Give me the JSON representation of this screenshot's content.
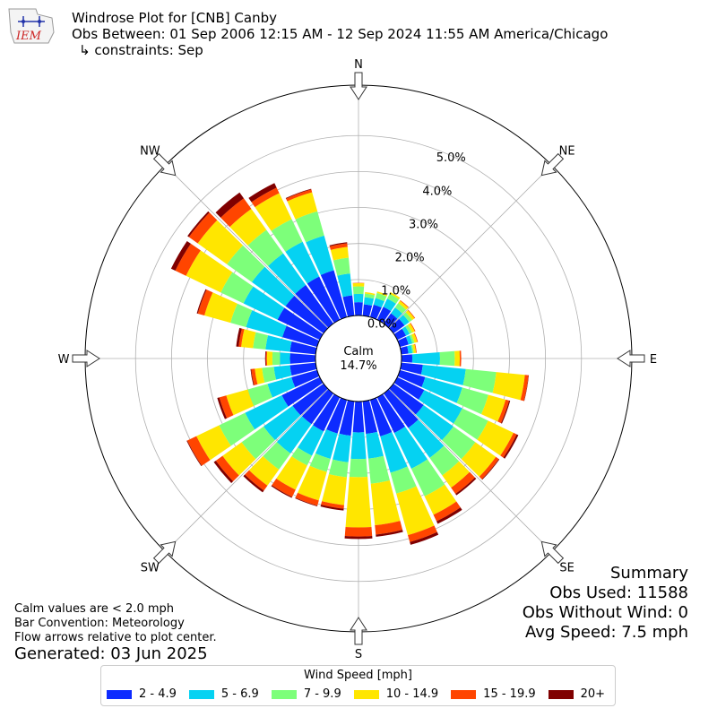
{
  "logo": {
    "text": "IEM",
    "color": "#cc2222"
  },
  "header": {
    "line1": "Windrose Plot for [CNB] Canby",
    "line2": "Obs Between: 01 Sep 2006 12:15 AM - 12 Sep 2024 11:55 AM America/Chicago",
    "line3": "↳ constraints: Sep"
  },
  "notes": {
    "calm": "Calm values are < 2.0 mph",
    "bar": "Bar Convention: Meteorology",
    "flow": "Flow arrows relative to plot center.",
    "generated": "Generated: 03 Jun 2025"
  },
  "summary": {
    "title": "Summary",
    "obs_used": "Obs Used: 11588",
    "obs_without_wind": "Obs Without Wind: 0",
    "avg_speed": "Avg Speed: 7.5 mph"
  },
  "legend": {
    "title": "Wind Speed [mph]"
  },
  "chart_data": {
    "type": "windrose",
    "calm_label": "Calm",
    "calm_value": "14.7%",
    "radial_ticks": [
      0,
      1,
      2,
      3,
      4,
      5
    ],
    "radial_tick_labels": [
      "0.0%",
      "1.0%",
      "2.0%",
      "3.0%",
      "4.0%",
      "5.0%"
    ],
    "radial_max": 6.4,
    "compass": [
      {
        "label": "N",
        "deg": 0
      },
      {
        "label": "NE",
        "deg": 45
      },
      {
        "label": "E",
        "deg": 90
      },
      {
        "label": "SE",
        "deg": 135
      },
      {
        "label": "S",
        "deg": 180
      },
      {
        "label": "SW",
        "deg": 225
      },
      {
        "label": "W",
        "deg": 270
      },
      {
        "label": "NW",
        "deg": 315
      }
    ],
    "bins": [
      {
        "name": "2 - 4.9",
        "color": "#0d2bff"
      },
      {
        "name": "5 - 6.9",
        "color": "#05d2f2"
      },
      {
        "name": "7 - 9.9",
        "color": "#7dff7a"
      },
      {
        "name": "10 - 14.9",
        "color": "#ffe600"
      },
      {
        "name": "15 - 19.9",
        "color": "#ff4500"
      },
      {
        "name": "20+",
        "color": "#800000"
      }
    ],
    "directions_deg": [
      0,
      10,
      20,
      30,
      40,
      50,
      60,
      70,
      80,
      90,
      100,
      110,
      120,
      130,
      140,
      150,
      160,
      170,
      180,
      190,
      200,
      210,
      220,
      230,
      240,
      250,
      260,
      270,
      280,
      290,
      300,
      310,
      320,
      330,
      340,
      350
    ],
    "cumulative": [
      [
        0.37,
        0.6,
        0.81,
        0.9,
        0.91,
        0.91
      ],
      [
        0.32,
        0.52,
        0.62,
        0.66,
        0.66,
        0.66
      ],
      [
        0.36,
        0.55,
        0.7,
        0.74,
        0.74,
        0.74
      ],
      [
        0.4,
        0.65,
        0.8,
        0.85,
        0.85,
        0.85
      ],
      [
        0.35,
        0.55,
        0.7,
        0.78,
        0.8,
        0.8
      ],
      [
        0.38,
        0.54,
        0.64,
        0.72,
        0.74,
        0.74
      ],
      [
        0.27,
        0.38,
        0.46,
        0.54,
        0.56,
        0.56
      ],
      [
        0.25,
        0.36,
        0.42,
        0.5,
        0.52,
        0.52
      ],
      [
        0.2,
        0.31,
        0.35,
        0.41,
        0.43,
        0.43
      ],
      [
        0.3,
        1.07,
        1.48,
        1.62,
        1.66,
        1.66
      ],
      [
        0.6,
        1.8,
        2.65,
        3.45,
        3.55,
        3.56
      ],
      [
        0.73,
        1.8,
        2.55,
        3.05,
        3.15,
        3.18
      ],
      [
        0.83,
        2.0,
        2.8,
        3.58,
        3.68,
        3.73
      ],
      [
        1.03,
        2.05,
        2.8,
        3.5,
        3.6,
        3.62
      ],
      [
        1.18,
        2.2,
        2.8,
        3.22,
        3.43,
        3.48
      ],
      [
        1.1,
        2.2,
        3.05,
        3.62,
        3.82,
        3.9
      ],
      [
        1.05,
        2.1,
        2.7,
        3.9,
        4.1,
        4.18
      ],
      [
        0.91,
        1.6,
        2.3,
        3.46,
        3.72,
        3.78
      ],
      [
        0.86,
        1.6,
        2.1,
        3.5,
        3.75,
        3.82
      ],
      [
        0.96,
        1.7,
        2.12,
        2.9,
        3.0,
        3.05
      ],
      [
        0.97,
        1.7,
        2.08,
        2.9,
        3.05,
        3.07
      ],
      [
        1.05,
        1.8,
        2.1,
        2.85,
        3.07,
        3.1
      ],
      [
        1.05,
        2.05,
        2.6,
        3.15,
        3.32,
        3.38
      ],
      [
        1.06,
        2.05,
        2.8,
        3.45,
        3.68,
        3.75
      ],
      [
        1.17,
        2.3,
        3.1,
        3.8,
        4.08,
        4.1
      ],
      [
        0.74,
        1.43,
        2.0,
        2.62,
        2.82,
        2.88
      ],
      [
        0.72,
        1.17,
        1.5,
        1.7,
        1.8,
        1.82
      ],
      [
        0.71,
        0.99,
        1.2,
        1.35,
        1.38,
        1.4
      ],
      [
        0.72,
        1.4,
        1.75,
        2.08,
        2.15,
        2.22
      ],
      [
        1.0,
        2.05,
        2.5,
        3.25,
        3.44,
        3.47
      ],
      [
        1.3,
        2.35,
        3.05,
        4.12,
        4.45,
        4.58
      ],
      [
        1.3,
        2.45,
        3.3,
        4.3,
        4.6,
        4.65
      ],
      [
        1.32,
        2.4,
        3.2,
        3.92,
        4.28,
        4.48
      ],
      [
        1.33,
        2.4,
        3.1,
        3.9,
        4.07,
        4.21
      ],
      [
        1.35,
        2.35,
        3.05,
        3.6,
        3.68,
        3.7
      ],
      [
        0.57,
        1.18,
        1.62,
        1.92,
        2.02,
        2.05
      ]
    ]
  }
}
